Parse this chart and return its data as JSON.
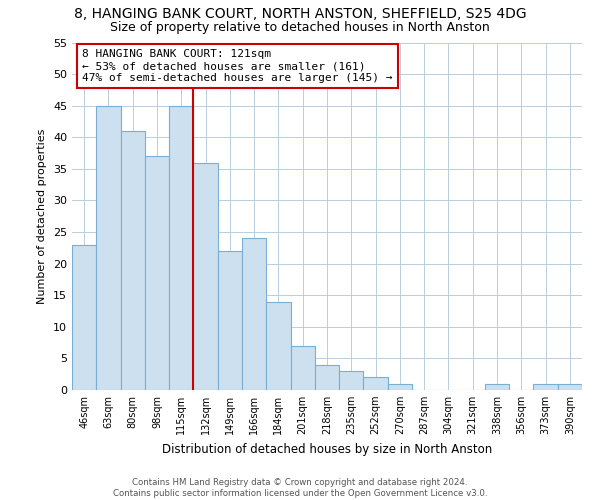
{
  "title": "8, HANGING BANK COURT, NORTH ANSTON, SHEFFIELD, S25 4DG",
  "subtitle": "Size of property relative to detached houses in North Anston",
  "xlabel": "Distribution of detached houses by size in North Anston",
  "ylabel": "Number of detached properties",
  "footer_line1": "Contains HM Land Registry data © Crown copyright and database right 2024.",
  "footer_line2": "Contains public sector information licensed under the Open Government Licence v3.0.",
  "bin_labels": [
    "46sqm",
    "63sqm",
    "80sqm",
    "98sqm",
    "115sqm",
    "132sqm",
    "149sqm",
    "166sqm",
    "184sqm",
    "201sqm",
    "218sqm",
    "235sqm",
    "252sqm",
    "270sqm",
    "287sqm",
    "304sqm",
    "321sqm",
    "338sqm",
    "356sqm",
    "373sqm",
    "390sqm"
  ],
  "bar_values": [
    23,
    45,
    41,
    37,
    45,
    36,
    22,
    24,
    14,
    7,
    4,
    3,
    2,
    1,
    0,
    0,
    0,
    1,
    0,
    1,
    1
  ],
  "bar_color": "#cce0f0",
  "bar_edge_color": "#7aafd4",
  "ref_line_color": "#cc0000",
  "annotation_line1": "8 HANGING BANK COURT: 121sqm",
  "annotation_line2": "← 53% of detached houses are smaller (161)",
  "annotation_line3": "47% of semi-detached houses are larger (145) →",
  "annotation_box_color": "white",
  "annotation_box_edge_color": "#cc0000",
  "ylim": [
    0,
    55
  ],
  "yticks": [
    0,
    5,
    10,
    15,
    20,
    25,
    30,
    35,
    40,
    45,
    50,
    55
  ],
  "bg_color": "white",
  "grid_color": "#b8cfe0",
  "title_fontsize": 10,
  "subtitle_fontsize": 9,
  "ylabel_text": "Number of detached properties"
}
